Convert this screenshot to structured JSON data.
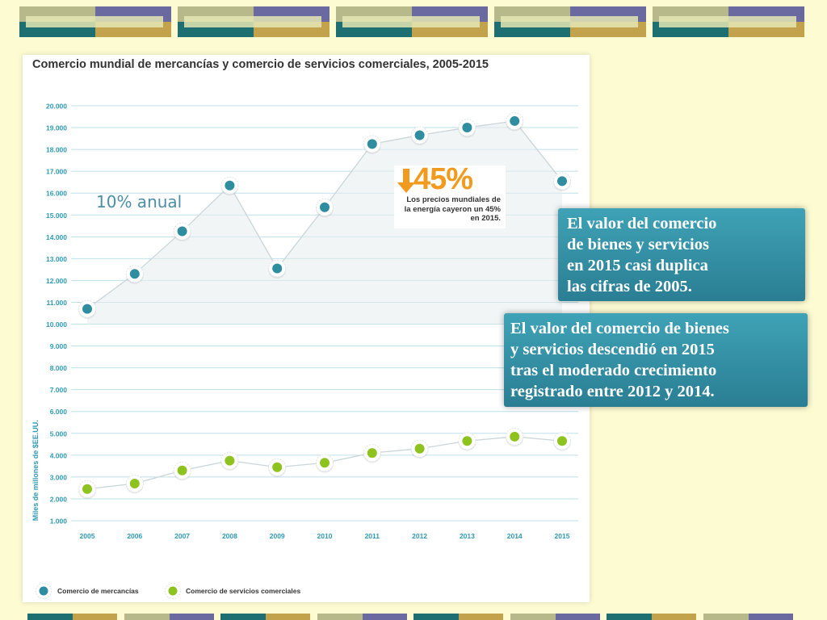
{
  "title": "Comercio mundial de mercancías y comercio de servicios comerciales, 2005-2015",
  "annotation_growth": "10% anual",
  "energy_note": {
    "percent": "45%",
    "line1": "Los precios mundiales de",
    "line2": "la energía cayeron un 45%",
    "line3": "en 2015."
  },
  "callout_1": {
    "lines": [
      "El valor del comercio",
      "de bienes y servicios",
      "en 2015 casi duplica",
      "las cifras de 2005."
    ]
  },
  "callout_2": {
    "lines": [
      "El valor del comercio de bienes",
      "y servicios descendió en 2015",
      "tras el moderado crecimiento",
      "registrado entre 2012 y 2014."
    ]
  },
  "colors": {
    "background": "#fdfbd2",
    "teal": "#2e8ea0",
    "green": "#8dc21f",
    "axis_text": "#2e9bb5",
    "orange": "#f29a1e",
    "callout": "#3195a9"
  },
  "chart_data": {
    "type": "line",
    "title": "Comercio mundial de mercancías y comercio de servicios comerciales, 2005-2015",
    "xlabel": "",
    "ylabel": "Miles de millones de $EE.UU.",
    "categories": [
      "2005",
      "2006",
      "2007",
      "2008",
      "2009",
      "2010",
      "2011",
      "2012",
      "2013",
      "2014",
      "2015"
    ],
    "yticks": [
      "1.000",
      "2.000",
      "3.000",
      "4.000",
      "5.000",
      "6.000",
      "7.000",
      "8.000",
      "9.000",
      "10.000",
      "11.000",
      "12.000",
      "13.000",
      "14.000",
      "15.000",
      "16.000",
      "17.000",
      "18.000",
      "19.000",
      "20.000"
    ],
    "ylim": [
      1000,
      20000
    ],
    "grid": true,
    "legend_position": "bottom-left",
    "series": [
      {
        "name": "Comercio de mercancías",
        "color": "#2e8ea0",
        "values": [
          10700,
          12300,
          14250,
          16350,
          12550,
          15350,
          18250,
          18650,
          19000,
          19300,
          16550
        ]
      },
      {
        "name": "Comercio de servicios comerciales",
        "color": "#8dc21f",
        "values": [
          2450,
          2700,
          3300,
          3750,
          3450,
          3650,
          4100,
          4300,
          4650,
          4850,
          4650
        ]
      }
    ]
  }
}
